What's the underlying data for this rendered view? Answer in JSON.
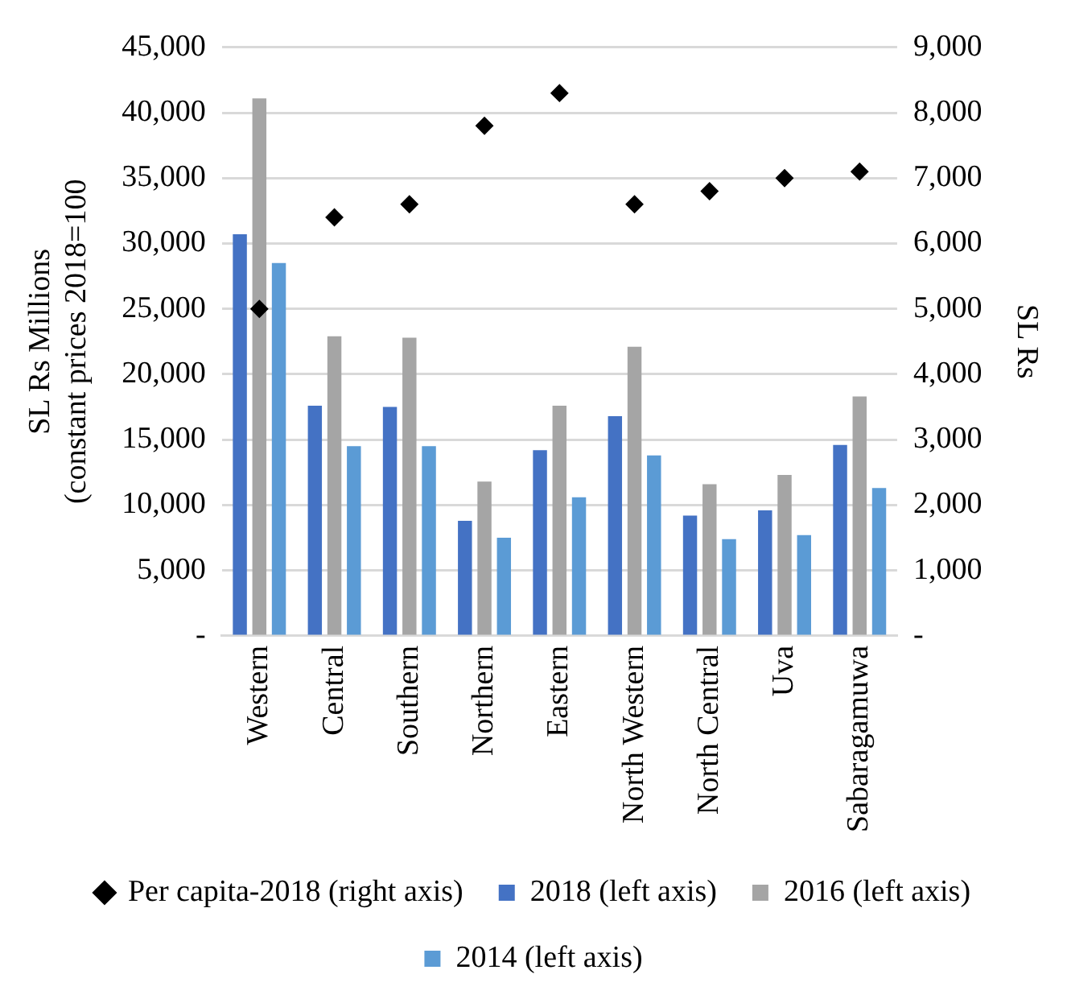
{
  "chart_data": {
    "type": "bar",
    "ylabel": "SL Rs Millions\n(constant prices 2018=100",
    "y2label": "SL Rs",
    "categories": [
      "Western",
      "Central",
      "Southern",
      "Northern",
      "Eastern",
      "North Western",
      "North Central",
      "Uva",
      "Sabaragamuwa"
    ],
    "series": [
      {
        "name": "2018 (left axis)",
        "color": "#4472c4",
        "values": [
          30700,
          17600,
          17500,
          8800,
          14200,
          16800,
          9200,
          9600,
          14600
        ]
      },
      {
        "name": "2016 (left axis)",
        "color": "#a5a5a5",
        "values": [
          41100,
          22900,
          22800,
          11800,
          17600,
          22100,
          11600,
          12300,
          18300
        ]
      },
      {
        "name": "2014 (left axis)",
        "color": "#5b9bd5",
        "values": [
          28500,
          14500,
          14500,
          7500,
          10600,
          13800,
          7400,
          7700,
          11300
        ]
      },
      {
        "name": "Per capita-2018 (right axis)",
        "type": "scatter",
        "axis": "y2",
        "color": "#000000",
        "marker": "diamond",
        "values": [
          5000,
          6400,
          6600,
          7800,
          8300,
          6600,
          6800,
          7000,
          7100
        ]
      }
    ],
    "ylim": [
      0,
      45000
    ],
    "yticks": [
      {
        "value": 0,
        "label": "-"
      },
      {
        "value": 5000,
        "label": "5,000"
      },
      {
        "value": 10000,
        "label": "10,000"
      },
      {
        "value": 15000,
        "label": "15,000"
      },
      {
        "value": 20000,
        "label": "20,000"
      },
      {
        "value": 25000,
        "label": "25,000"
      },
      {
        "value": 30000,
        "label": "30,000"
      },
      {
        "value": 35000,
        "label": "35,000"
      },
      {
        "value": 40000,
        "label": "40,000"
      },
      {
        "value": 45000,
        "label": "45,000"
      }
    ],
    "y2lim": [
      0,
      9000
    ],
    "y2ticks": [
      {
        "value": 0,
        "label": "-"
      },
      {
        "value": 1000,
        "label": "1,000"
      },
      {
        "value": 2000,
        "label": "2,000"
      },
      {
        "value": 3000,
        "label": "3,000"
      },
      {
        "value": 4000,
        "label": "4,000"
      },
      {
        "value": 5000,
        "label": "5,000"
      },
      {
        "value": 6000,
        "label": "6,000"
      },
      {
        "value": 7000,
        "label": "7,000"
      },
      {
        "value": 8000,
        "label": "8,000"
      },
      {
        "value": 9000,
        "label": "9,000"
      }
    ],
    "grid": "y",
    "legend": "bottom"
  }
}
